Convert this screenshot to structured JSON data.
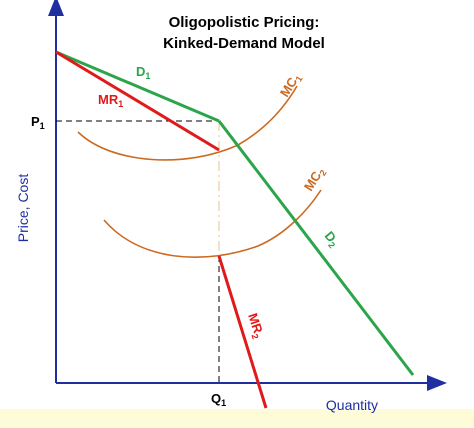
{
  "title": {
    "line1": "Oligopolistic Pricing:",
    "line2": "Kinked-Demand Model"
  },
  "axes": {
    "y_label": "Price, Cost",
    "x_label": "Quantity"
  },
  "points": {
    "p_label": "P",
    "p_sub": "1",
    "q_label": "Q",
    "q_sub": "1"
  },
  "curves": {
    "d1": {
      "label": "D",
      "sub": "1"
    },
    "d2": {
      "label": "D",
      "sub": "2"
    },
    "mr1": {
      "label": "MR",
      "sub": "1"
    },
    "mr2": {
      "label": "MR",
      "sub": "2"
    },
    "mc1": {
      "label": "MC",
      "sub": "1"
    },
    "mc2": {
      "label": "MC",
      "sub": "2"
    }
  },
  "colors": {
    "demand": "#2aa54a",
    "marginal_revenue": "#e01a1a",
    "marginal_cost": "#cc6a20",
    "axis": "#1f2fa0",
    "footer": "#fdfbd8"
  }
}
